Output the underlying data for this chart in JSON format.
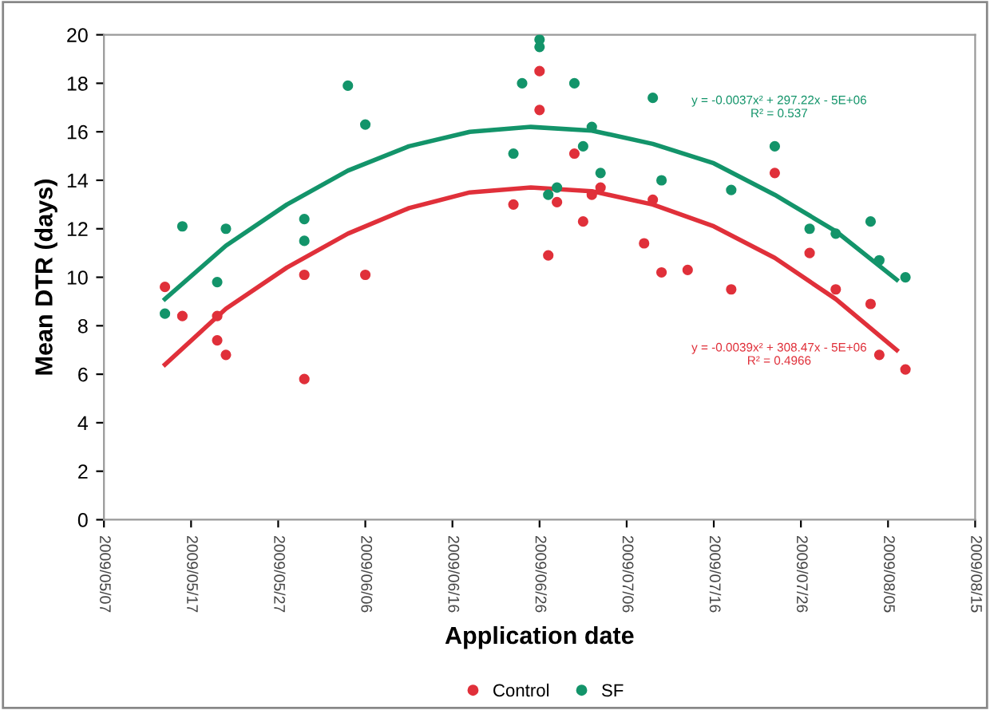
{
  "chart_data": {
    "type": "scatter",
    "xlabel": "Application date",
    "ylabel": "Mean DTR (days)",
    "xlim": [
      "2009-05-07",
      "2009-08-15"
    ],
    "xticks": [
      {
        "value": "2009-05-07",
        "label": "2009/05/07"
      },
      {
        "value": "2009-05-17",
        "label": "2009/05/17"
      },
      {
        "value": "2009-05-27",
        "label": "2009/05/27"
      },
      {
        "value": "2009-06-06",
        "label": "2009/06/06"
      },
      {
        "value": "2009-06-16",
        "label": "2009/06/16"
      },
      {
        "value": "2009-06-26",
        "label": "2009/06/26"
      },
      {
        "value": "2009-07-06",
        "label": "2009/07/06"
      },
      {
        "value": "2009-07-16",
        "label": "2009/07/16"
      },
      {
        "value": "2009-07-26",
        "label": "2009/07/26"
      },
      {
        "value": "2009-08-05",
        "label": "2009/08/05"
      },
      {
        "value": "2009-08-15",
        "label": "2009/08/15"
      }
    ],
    "ylim": [
      0,
      20
    ],
    "yticks": [
      0,
      2,
      4,
      6,
      8,
      10,
      12,
      14,
      16,
      18,
      20
    ],
    "grid": false,
    "legend": "bottom",
    "marker": "circle",
    "series": [
      {
        "name": "Control",
        "color": "#e0303a",
        "x": [
          "2009-05-14",
          "2009-05-16",
          "2009-05-20",
          "2009-05-20",
          "2009-05-21",
          "2009-05-30",
          "2009-05-30",
          "2009-06-06",
          "2009-06-23",
          "2009-06-26",
          "2009-06-26",
          "2009-06-27",
          "2009-06-28",
          "2009-06-30",
          "2009-07-01",
          "2009-07-02",
          "2009-07-03",
          "2009-07-08",
          "2009-07-09",
          "2009-07-10",
          "2009-07-13",
          "2009-07-18",
          "2009-07-23",
          "2009-07-27",
          "2009-07-30",
          "2009-08-03",
          "2009-08-04",
          "2009-08-07"
        ],
        "values": [
          9.6,
          8.4,
          8.4,
          7.4,
          6.8,
          10.1,
          5.8,
          10.1,
          13.0,
          18.5,
          16.9,
          10.9,
          13.1,
          15.1,
          12.3,
          13.4,
          13.7,
          11.4,
          13.2,
          10.2,
          10.3,
          9.5,
          14.3,
          11.0,
          9.5,
          8.9,
          6.8,
          6.2
        ]
      },
      {
        "name": "SF",
        "color": "#13946a",
        "x": [
          "2009-05-14",
          "2009-05-16",
          "2009-05-20",
          "2009-05-21",
          "2009-05-30",
          "2009-05-30",
          "2009-06-04",
          "2009-06-06",
          "2009-06-23",
          "2009-06-24",
          "2009-06-26",
          "2009-06-26",
          "2009-06-27",
          "2009-06-28",
          "2009-06-30",
          "2009-07-01",
          "2009-07-02",
          "2009-07-03",
          "2009-07-09",
          "2009-07-10",
          "2009-07-18",
          "2009-07-23",
          "2009-07-27",
          "2009-07-30",
          "2009-08-03",
          "2009-08-04",
          "2009-08-07"
        ],
        "values": [
          8.5,
          12.1,
          9.8,
          12.0,
          12.4,
          11.5,
          17.9,
          16.3,
          15.1,
          18.0,
          19.8,
          19.5,
          13.4,
          13.7,
          18.0,
          15.4,
          16.2,
          14.3,
          17.4,
          14.0,
          13.6,
          15.4,
          12.0,
          11.8,
          12.3,
          10.7,
          10.0
        ]
      },
      {
        "color": "#e0303a",
        "type": "line",
        "marker": "none",
        "x": [
          "2009-05-14",
          "2009-05-21",
          "2009-05-28",
          "2009-06-04",
          "2009-06-11",
          "2009-06-18",
          "2009-06-25",
          "2009-07-02",
          "2009-07-09",
          "2009-07-16",
          "2009-07-23",
          "2009-07-30",
          "2009-08-06"
        ],
        "values": [
          6.4,
          8.7,
          10.4,
          11.8,
          12.85,
          13.5,
          13.7,
          13.55,
          13.0,
          12.1,
          10.8,
          9.1,
          7.0
        ]
      },
      {
        "color": "#13946a",
        "type": "line",
        "marker": "none",
        "x": [
          "2009-05-14",
          "2009-05-21",
          "2009-05-28",
          "2009-06-04",
          "2009-06-11",
          "2009-06-18",
          "2009-06-25",
          "2009-07-02",
          "2009-07-09",
          "2009-07-16",
          "2009-07-23",
          "2009-07-30",
          "2009-08-06"
        ],
        "values": [
          9.1,
          11.3,
          13.0,
          14.4,
          15.4,
          16.0,
          16.2,
          16.05,
          15.5,
          14.7,
          13.4,
          11.9,
          9.9
        ]
      }
    ],
    "annotations": [
      "y = -0.0037x² + 297.22x - 5E+06\nR² = 0.537",
      "y = -0.0039x² + 308.47x - 5E+06\nR² = 0.4966"
    ]
  }
}
